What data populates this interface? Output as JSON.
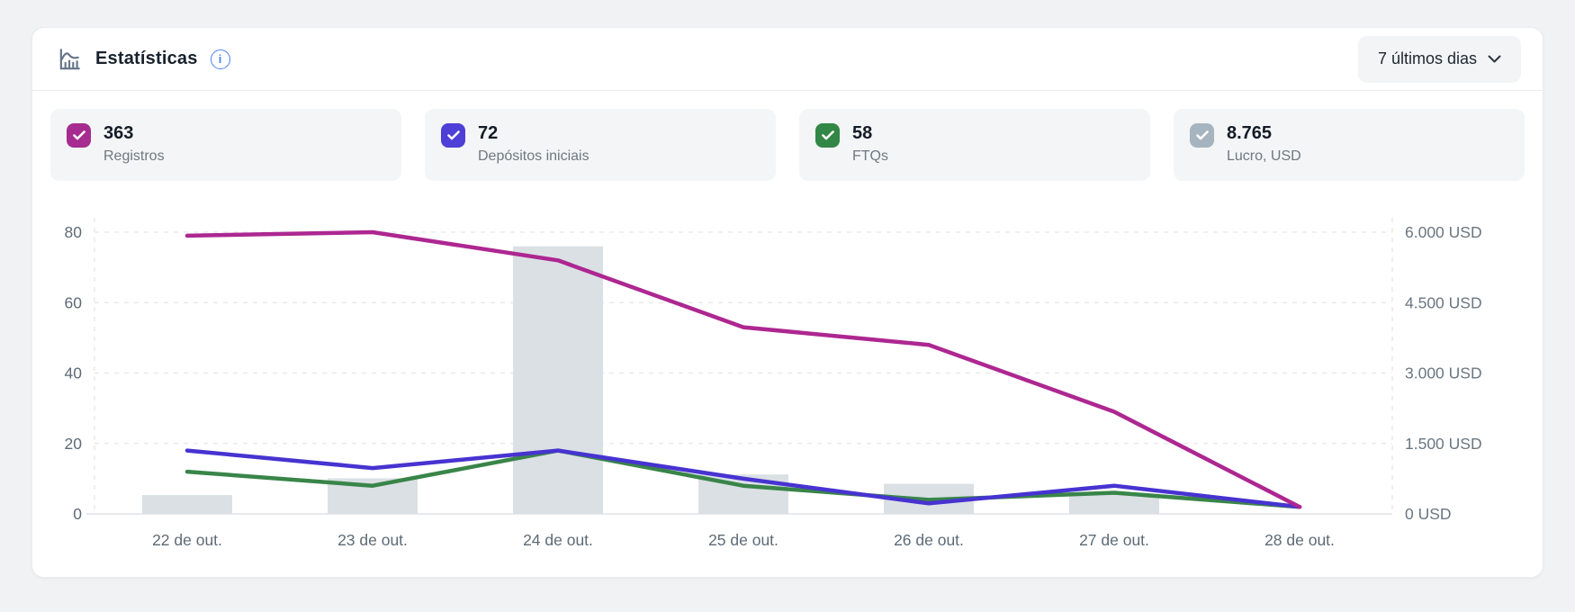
{
  "header": {
    "title": "Estatísticas",
    "icons": {
      "title": "bar-chart-icon",
      "info": "info-icon",
      "period": "chevron-down-icon"
    },
    "period_selector": {
      "label": "7 últimos dias"
    }
  },
  "cards": [
    {
      "value": "363",
      "label": "Registros",
      "checked": true,
      "color": "#a62c90",
      "icon": "checkmark-icon"
    },
    {
      "value": "72",
      "label": "Depósitos iniciais",
      "checked": true,
      "color": "#4e3fd6",
      "icon": "checkmark-icon"
    },
    {
      "value": "58",
      "label": "FTQs",
      "checked": true,
      "color": "#338746",
      "icon": "checkmark-icon"
    },
    {
      "value": "8.765",
      "label": "Lucro, USD",
      "checked": true,
      "color": "#a6b4bf",
      "icon": "checkmark-icon"
    }
  ],
  "chart_data": {
    "type": "combo",
    "categories": [
      "22 de out.",
      "23 de out.",
      "24 de out.",
      "25 de out.",
      "26 de out.",
      "27 de out.",
      "28 de out."
    ],
    "series": [
      {
        "name": "Registros",
        "type": "line",
        "axis": "left",
        "color": "#ad2791",
        "values": [
          79,
          80,
          72,
          53,
          48,
          29,
          2
        ]
      },
      {
        "name": "Depósitos iniciais",
        "type": "line",
        "axis": "left",
        "color": "#4733d1",
        "values": [
          18,
          13,
          18,
          10,
          3,
          8,
          2
        ]
      },
      {
        "name": "FTQs",
        "type": "line",
        "axis": "left",
        "color": "#398549",
        "values": [
          12,
          8,
          18,
          8,
          4,
          6,
          2
        ]
      },
      {
        "name": "Lucro, USD",
        "type": "bar",
        "axis": "right",
        "color": "#dbe0e5",
        "values": [
          400,
          760,
          5700,
          840,
          640,
          425,
          0
        ]
      }
    ],
    "left_axis": {
      "range": [
        0,
        80
      ],
      "ticks": [
        0,
        20,
        40,
        60,
        80
      ],
      "tick_labels": [
        "0",
        "20",
        "40",
        "60",
        "80"
      ]
    },
    "right_axis": {
      "range": [
        0,
        6000
      ],
      "ticks": [
        0,
        1500,
        3000,
        4500,
        6000
      ],
      "tick_labels": [
        "0 USD",
        "1.500 USD",
        "3.000 USD",
        "4.500 USD",
        "6.000 USD"
      ]
    },
    "grid": {
      "horizontal": "dashed",
      "plot_edge_verticals": "dashed",
      "legend": "none"
    },
    "title": "",
    "xlabel": "",
    "ylabel": ""
  }
}
